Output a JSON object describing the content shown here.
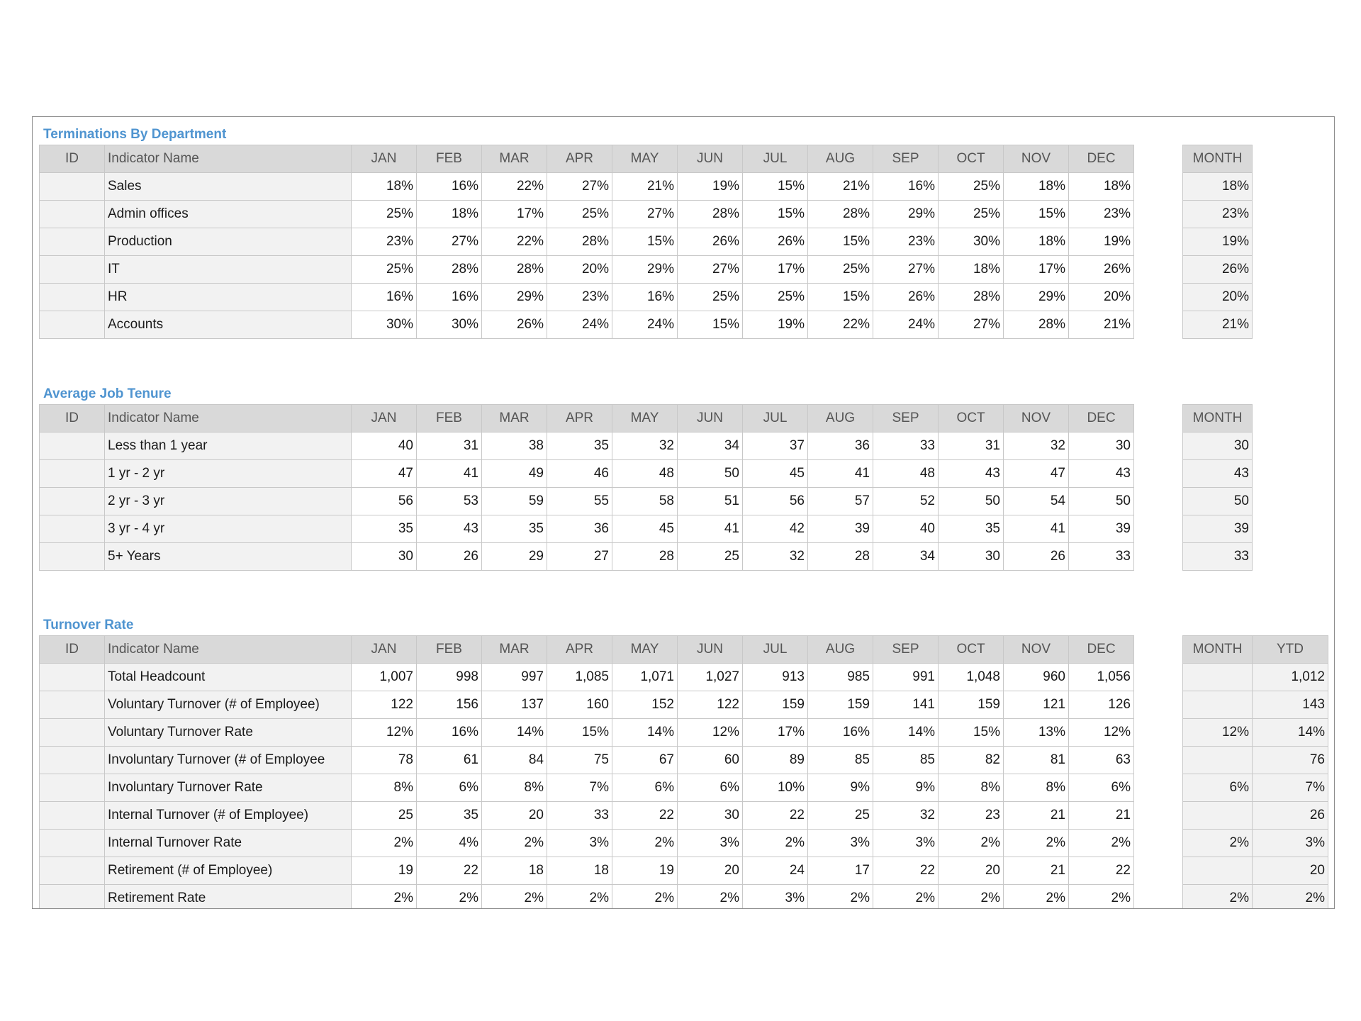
{
  "sections": [
    {
      "title": "Terminations By Department",
      "headers": [
        "ID",
        "Indicator Name",
        "JAN",
        "FEB",
        "MAR",
        "APR",
        "MAY",
        "JUN",
        "JUL",
        "AUG",
        "SEP",
        "OCT",
        "NOV",
        "DEC"
      ],
      "side_headers": [
        "MONTH"
      ],
      "rows": [
        {
          "id": "",
          "name": "Sales",
          "values": [
            "18%",
            "16%",
            "22%",
            "27%",
            "21%",
            "19%",
            "15%",
            "21%",
            "16%",
            "25%",
            "18%",
            "18%"
          ],
          "side": [
            "18%"
          ]
        },
        {
          "id": "",
          "name": "Admin offices",
          "values": [
            "25%",
            "18%",
            "17%",
            "25%",
            "27%",
            "28%",
            "15%",
            "28%",
            "29%",
            "25%",
            "15%",
            "23%"
          ],
          "side": [
            "23%"
          ]
        },
        {
          "id": "",
          "name": "Production",
          "values": [
            "23%",
            "27%",
            "22%",
            "28%",
            "15%",
            "26%",
            "26%",
            "15%",
            "23%",
            "30%",
            "18%",
            "19%"
          ],
          "side": [
            "19%"
          ]
        },
        {
          "id": "",
          "name": "IT",
          "values": [
            "25%",
            "28%",
            "28%",
            "20%",
            "29%",
            "27%",
            "17%",
            "25%",
            "27%",
            "18%",
            "17%",
            "26%"
          ],
          "side": [
            "26%"
          ]
        },
        {
          "id": "",
          "name": "HR",
          "values": [
            "16%",
            "16%",
            "29%",
            "23%",
            "16%",
            "25%",
            "25%",
            "15%",
            "26%",
            "28%",
            "29%",
            "20%"
          ],
          "side": [
            "20%"
          ]
        },
        {
          "id": "",
          "name": "Accounts",
          "values": [
            "30%",
            "30%",
            "26%",
            "24%",
            "24%",
            "15%",
            "19%",
            "22%",
            "24%",
            "27%",
            "28%",
            "21%"
          ],
          "side": [
            "21%"
          ]
        }
      ]
    },
    {
      "title": "Average Job Tenure",
      "headers": [
        "ID",
        "Indicator Name",
        "JAN",
        "FEB",
        "MAR",
        "APR",
        "MAY",
        "JUN",
        "JUL",
        "AUG",
        "SEP",
        "OCT",
        "NOV",
        "DEC"
      ],
      "side_headers": [
        "MONTH"
      ],
      "rows": [
        {
          "id": "",
          "name": "Less than 1 year",
          "values": [
            "40",
            "31",
            "38",
            "35",
            "32",
            "34",
            "37",
            "36",
            "33",
            "31",
            "32",
            "30"
          ],
          "side": [
            "30"
          ]
        },
        {
          "id": "",
          "name": "1 yr - 2 yr",
          "values": [
            "47",
            "41",
            "49",
            "46",
            "48",
            "50",
            "45",
            "41",
            "48",
            "43",
            "47",
            "43"
          ],
          "side": [
            "43"
          ]
        },
        {
          "id": "",
          "name": "2 yr - 3 yr",
          "values": [
            "56",
            "53",
            "59",
            "55",
            "58",
            "51",
            "56",
            "57",
            "52",
            "50",
            "54",
            "50"
          ],
          "side": [
            "50"
          ]
        },
        {
          "id": "",
          "name": "3 yr - 4 yr",
          "values": [
            "35",
            "43",
            "35",
            "36",
            "45",
            "41",
            "42",
            "39",
            "40",
            "35",
            "41",
            "39"
          ],
          "side": [
            "39"
          ]
        },
        {
          "id": "",
          "name": "5+ Years",
          "values": [
            "30",
            "26",
            "29",
            "27",
            "28",
            "25",
            "32",
            "28",
            "34",
            "30",
            "26",
            "33"
          ],
          "side": [
            "33"
          ]
        }
      ]
    },
    {
      "title": "Turnover Rate",
      "headers": [
        "ID",
        "Indicator Name",
        "JAN",
        "FEB",
        "MAR",
        "APR",
        "MAY",
        "JUN",
        "JUL",
        "AUG",
        "SEP",
        "OCT",
        "NOV",
        "DEC"
      ],
      "side_headers": [
        "MONTH",
        "YTD"
      ],
      "rows": [
        {
          "id": "",
          "name": "Total Headcount",
          "values": [
            "1,007",
            "998",
            "997",
            "1,085",
            "1,071",
            "1,027",
            "913",
            "985",
            "991",
            "1,048",
            "960",
            "1,056"
          ],
          "side": [
            "",
            "1,012"
          ]
        },
        {
          "id": "",
          "name": "Voluntary Turnover (# of Employee)",
          "values": [
            "122",
            "156",
            "137",
            "160",
            "152",
            "122",
            "159",
            "159",
            "141",
            "159",
            "121",
            "126"
          ],
          "side": [
            "",
            "143"
          ]
        },
        {
          "id": "",
          "name": "Voluntary Turnover Rate",
          "values": [
            "12%",
            "16%",
            "14%",
            "15%",
            "14%",
            "12%",
            "17%",
            "16%",
            "14%",
            "15%",
            "13%",
            "12%"
          ],
          "side": [
            "12%",
            "14%"
          ]
        },
        {
          "id": "",
          "name": " Involuntary Turnover (# of Employee",
          "values": [
            "78",
            "61",
            "84",
            "75",
            "67",
            "60",
            "89",
            "85",
            "85",
            "82",
            "81",
            "63"
          ],
          "side": [
            "",
            "76"
          ]
        },
        {
          "id": "",
          "name": " Involuntary Turnover Rate",
          "values": [
            "8%",
            "6%",
            "8%",
            "7%",
            "6%",
            "6%",
            "10%",
            "9%",
            "9%",
            "8%",
            "8%",
            "6%"
          ],
          "side": [
            "6%",
            "7%"
          ]
        },
        {
          "id": "",
          "name": "Internal Turnover (# of Employee)",
          "values": [
            "25",
            "35",
            "20",
            "33",
            "22",
            "30",
            "22",
            "25",
            "32",
            "23",
            "21",
            "21"
          ],
          "side": [
            "",
            "26"
          ]
        },
        {
          "id": "",
          "name": "Internal Turnover Rate",
          "values": [
            "2%",
            "4%",
            "2%",
            "3%",
            "2%",
            "3%",
            "2%",
            "3%",
            "3%",
            "2%",
            "2%",
            "2%"
          ],
          "side": [
            "2%",
            "3%"
          ]
        },
        {
          "id": "",
          "name": "Retirement (# of Employee)",
          "values": [
            "19",
            "22",
            "18",
            "18",
            "19",
            "20",
            "24",
            "17",
            "22",
            "20",
            "21",
            "22"
          ],
          "side": [
            "",
            "20"
          ]
        },
        {
          "id": "",
          "name": "Retirement Rate",
          "values": [
            "2%",
            "2%",
            "2%",
            "2%",
            "2%",
            "2%",
            "3%",
            "2%",
            "2%",
            "2%",
            "2%",
            "2%"
          ],
          "side": [
            "2%",
            "2%"
          ]
        }
      ]
    }
  ]
}
